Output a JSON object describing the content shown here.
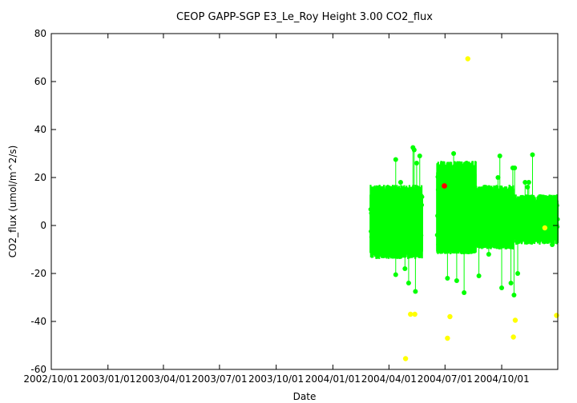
{
  "chart_data": {
    "type": "scatter",
    "title": "CEOP GAPP-SGP E3_Le_Roy Height 3.00 CO2_flux",
    "xlabel": "Date",
    "ylabel": "CO2_flux (umol/m^2/s)",
    "ylim": [
      -60,
      80
    ],
    "xlim": [
      "2002-10-01",
      "2004-12-31"
    ],
    "grid": false,
    "legend": "none",
    "y_ticks": [
      -60,
      -40,
      -20,
      0,
      20,
      40,
      60,
      80
    ],
    "x_ticks": [
      {
        "date": "2002-10-01",
        "label": "2002/10/01"
      },
      {
        "date": "2003-01-01",
        "label": "2003/01/01"
      },
      {
        "date": "2003-04-01",
        "label": "2003/04/01"
      },
      {
        "date": "2003-07-01",
        "label": "2003/07/01"
      },
      {
        "date": "2003-10-01",
        "label": "2003/10/01"
      },
      {
        "date": "2004-01-01",
        "label": "2004/01/01"
      },
      {
        "date": "2004-04-01",
        "label": "2004/04/01"
      },
      {
        "date": "2004-07-01",
        "label": "2004/07/01"
      },
      {
        "date": "2004-10-01",
        "label": "2004/10/01"
      }
    ],
    "colors": {
      "good": "#00ff00",
      "flagged": "#ffff00",
      "bad": "#ff0000",
      "axis": "#000000"
    },
    "series": [
      {
        "segments": [
          {
            "start": "2004-03-02",
            "end": "2004-05-25",
            "low": -12,
            "high": 14
          },
          {
            "start": "2004-06-18",
            "end": "2004-08-20",
            "low": -10,
            "high": 24
          },
          {
            "start": "2004-08-20",
            "end": "2004-10-20",
            "low": -8,
            "high": 14
          },
          {
            "start": "2004-10-20",
            "end": "2004-12-31",
            "low": -6,
            "high": 10
          }
        ],
        "spikes": [
          {
            "x": "2004-04-12",
            "y": 27.5
          },
          {
            "x": "2004-04-12",
            "y": -20.5
          },
          {
            "x": "2004-04-20",
            "y": 18
          },
          {
            "x": "2004-04-27",
            "y": -18
          },
          {
            "x": "2004-05-10",
            "y": 32.5
          },
          {
            "x": "2004-05-12",
            "y": 31.5
          },
          {
            "x": "2004-05-14",
            "y": -27.5
          },
          {
            "x": "2004-05-16",
            "y": 26
          },
          {
            "x": "2004-05-21",
            "y": 29
          },
          {
            "x": "2004-05-03",
            "y": -24
          },
          {
            "x": "2004-07-05",
            "y": -22
          },
          {
            "x": "2004-07-15",
            "y": 30
          },
          {
            "x": "2004-07-20",
            "y": -23
          },
          {
            "x": "2004-08-01",
            "y": -28
          },
          {
            "x": "2004-08-05",
            "y": 26
          },
          {
            "x": "2004-08-10",
            "y": 25
          },
          {
            "x": "2004-08-25",
            "y": -21
          },
          {
            "x": "2004-09-10",
            "y": -12
          },
          {
            "x": "2004-09-28",
            "y": 29
          },
          {
            "x": "2004-09-25",
            "y": 20
          },
          {
            "x": "2004-10-01",
            "y": -26
          },
          {
            "x": "2004-10-16",
            "y": -24
          },
          {
            "x": "2004-10-19",
            "y": 24
          },
          {
            "x": "2004-10-22",
            "y": 24
          },
          {
            "x": "2004-10-21",
            "y": -29
          },
          {
            "x": "2004-11-20",
            "y": 29.5
          },
          {
            "x": "2004-11-08",
            "y": 18
          },
          {
            "x": "2004-11-14",
            "y": 18
          },
          {
            "x": "2004-11-12",
            "y": 16
          },
          {
            "x": "2004-10-27",
            "y": -20
          },
          {
            "x": "2004-12-10",
            "y": 10
          },
          {
            "x": "2004-12-22",
            "y": -8
          }
        ]
      },
      {
        "points": [
          {
            "x": "2004-08-07",
            "y": 69.5
          },
          {
            "x": "2004-04-28",
            "y": -55.5
          },
          {
            "x": "2004-05-06",
            "y": -37
          },
          {
            "x": "2004-05-13",
            "y": -37
          },
          {
            "x": "2004-07-05",
            "y": -47
          },
          {
            "x": "2004-07-09",
            "y": -38
          },
          {
            "x": "2004-10-20",
            "y": -46.5
          },
          {
            "x": "2004-10-23",
            "y": -39.5
          },
          {
            "x": "2004-12-10",
            "y": -1
          },
          {
            "x": "2004-12-29",
            "y": -37.5
          }
        ]
      },
      {
        "points": [
          {
            "x": "2004-06-30",
            "y": 16.5
          }
        ]
      }
    ]
  }
}
